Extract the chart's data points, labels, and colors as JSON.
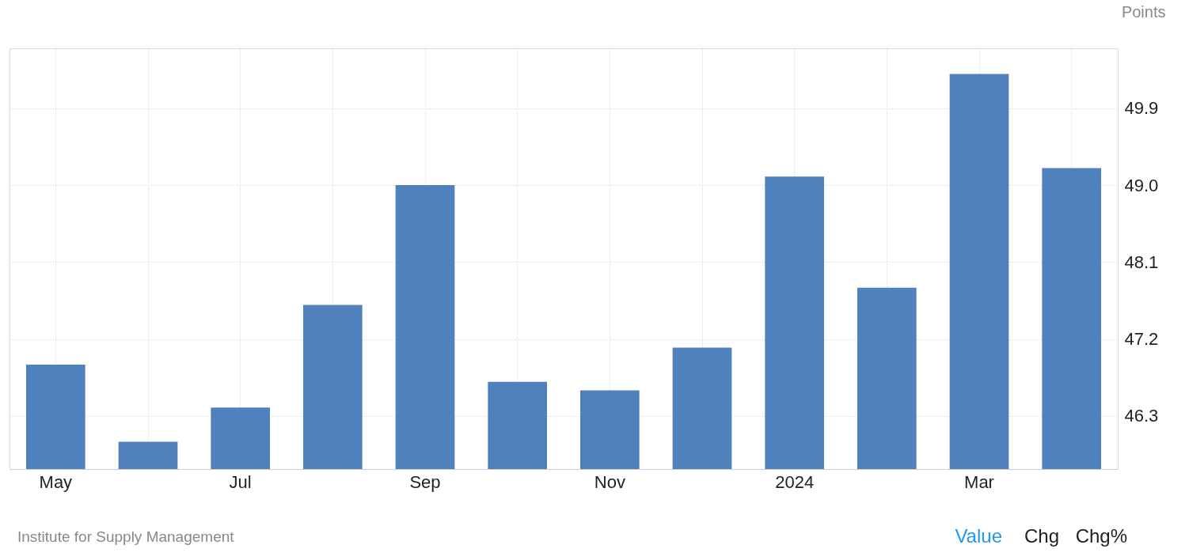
{
  "chart_data": {
    "type": "bar",
    "ylabel": "Points",
    "categories": [
      "May",
      null,
      "Jul",
      null,
      "Sep",
      null,
      "Nov",
      null,
      "2024",
      null,
      "Mar",
      null
    ],
    "values": [
      46.9,
      46.0,
      46.4,
      47.6,
      49.0,
      46.7,
      46.6,
      47.1,
      49.1,
      47.8,
      50.3,
      49.2
    ],
    "color": "#4f81bd",
    "ylim": [
      45.68,
      50.6
    ],
    "yticks": [
      46.3,
      47.2,
      48.1,
      {
        "value": 49,
        "label": "49.0"
      },
      49.9
    ],
    "grid": true,
    "annotations": [
      "Institute for Supply Management",
      "Value",
      "Chg",
      "Chg%"
    ]
  }
}
